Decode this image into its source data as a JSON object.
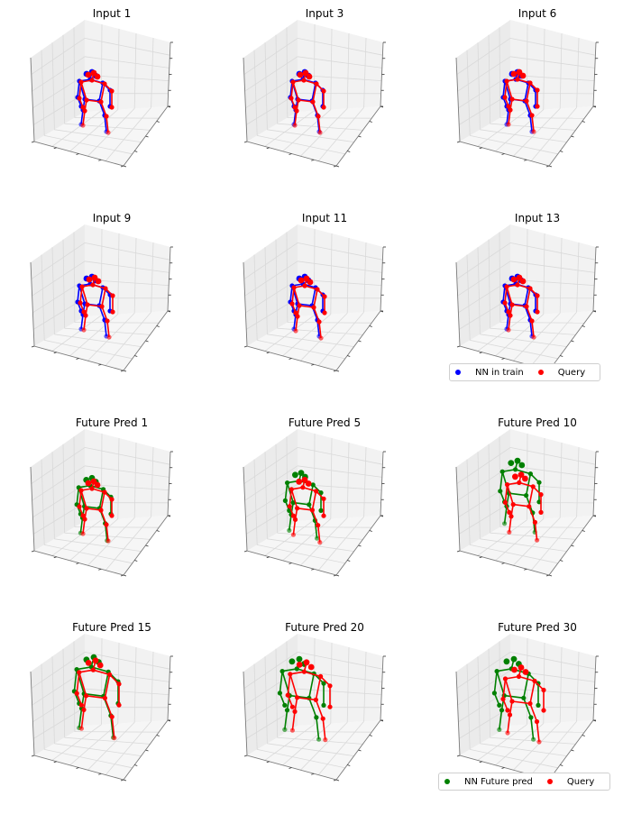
{
  "chart_data": [
    {
      "type": "scatter",
      "title": "Input 1",
      "series": [
        {
          "name": "NN in train",
          "color": "#0000ff"
        },
        {
          "name": "Query",
          "color": "#ff0000"
        }
      ]
    },
    {
      "type": "scatter",
      "title": "Input 3",
      "series": [
        {
          "name": "NN in train",
          "color": "#0000ff"
        },
        {
          "name": "Query",
          "color": "#ff0000"
        }
      ]
    },
    {
      "type": "scatter",
      "title": "Input 6",
      "series": [
        {
          "name": "NN in train",
          "color": "#0000ff"
        },
        {
          "name": "Query",
          "color": "#ff0000"
        }
      ]
    },
    {
      "type": "scatter",
      "title": "Input 9",
      "series": [
        {
          "name": "NN in train",
          "color": "#0000ff"
        },
        {
          "name": "Query",
          "color": "#ff0000"
        }
      ]
    },
    {
      "type": "scatter",
      "title": "Input 11",
      "series": [
        {
          "name": "NN in train",
          "color": "#0000ff"
        },
        {
          "name": "Query",
          "color": "#ff0000"
        }
      ]
    },
    {
      "type": "scatter",
      "title": "Input 13",
      "series": [
        {
          "name": "NN in train",
          "color": "#0000ff"
        },
        {
          "name": "Query",
          "color": "#ff0000"
        }
      ]
    },
    {
      "type": "scatter",
      "title": "Future Pred 1",
      "series": [
        {
          "name": "NN Future pred",
          "color": "#008000"
        },
        {
          "name": "Query",
          "color": "#ff0000"
        }
      ]
    },
    {
      "type": "scatter",
      "title": "Future Pred 5",
      "series": [
        {
          "name": "NN Future pred",
          "color": "#008000"
        },
        {
          "name": "Query",
          "color": "#ff0000"
        }
      ]
    },
    {
      "type": "scatter",
      "title": "Future Pred 10",
      "series": [
        {
          "name": "NN Future pred",
          "color": "#008000"
        },
        {
          "name": "Query",
          "color": "#ff0000"
        }
      ]
    },
    {
      "type": "scatter",
      "title": "Future Pred 15",
      "series": [
        {
          "name": "NN Future pred",
          "color": "#008000"
        },
        {
          "name": "Query",
          "color": "#ff0000"
        }
      ]
    },
    {
      "type": "scatter",
      "title": "Future Pred 20",
      "series": [
        {
          "name": "NN Future pred",
          "color": "#008000"
        },
        {
          "name": "Query",
          "color": "#ff0000"
        }
      ]
    },
    {
      "type": "scatter",
      "title": "Future Pred 30",
      "series": [
        {
          "name": "NN Future pred",
          "color": "#008000"
        },
        {
          "name": "Query",
          "color": "#ff0000"
        }
      ]
    }
  ],
  "legends": [
    {
      "entries": [
        {
          "label": "NN in train",
          "color": "#0000ff"
        },
        {
          "label": "Query",
          "color": "#ff0000"
        }
      ]
    },
    {
      "entries": [
        {
          "label": "NN Future pred",
          "color": "#008000"
        },
        {
          "label": "Query",
          "color": "#ff0000"
        }
      ]
    }
  ]
}
